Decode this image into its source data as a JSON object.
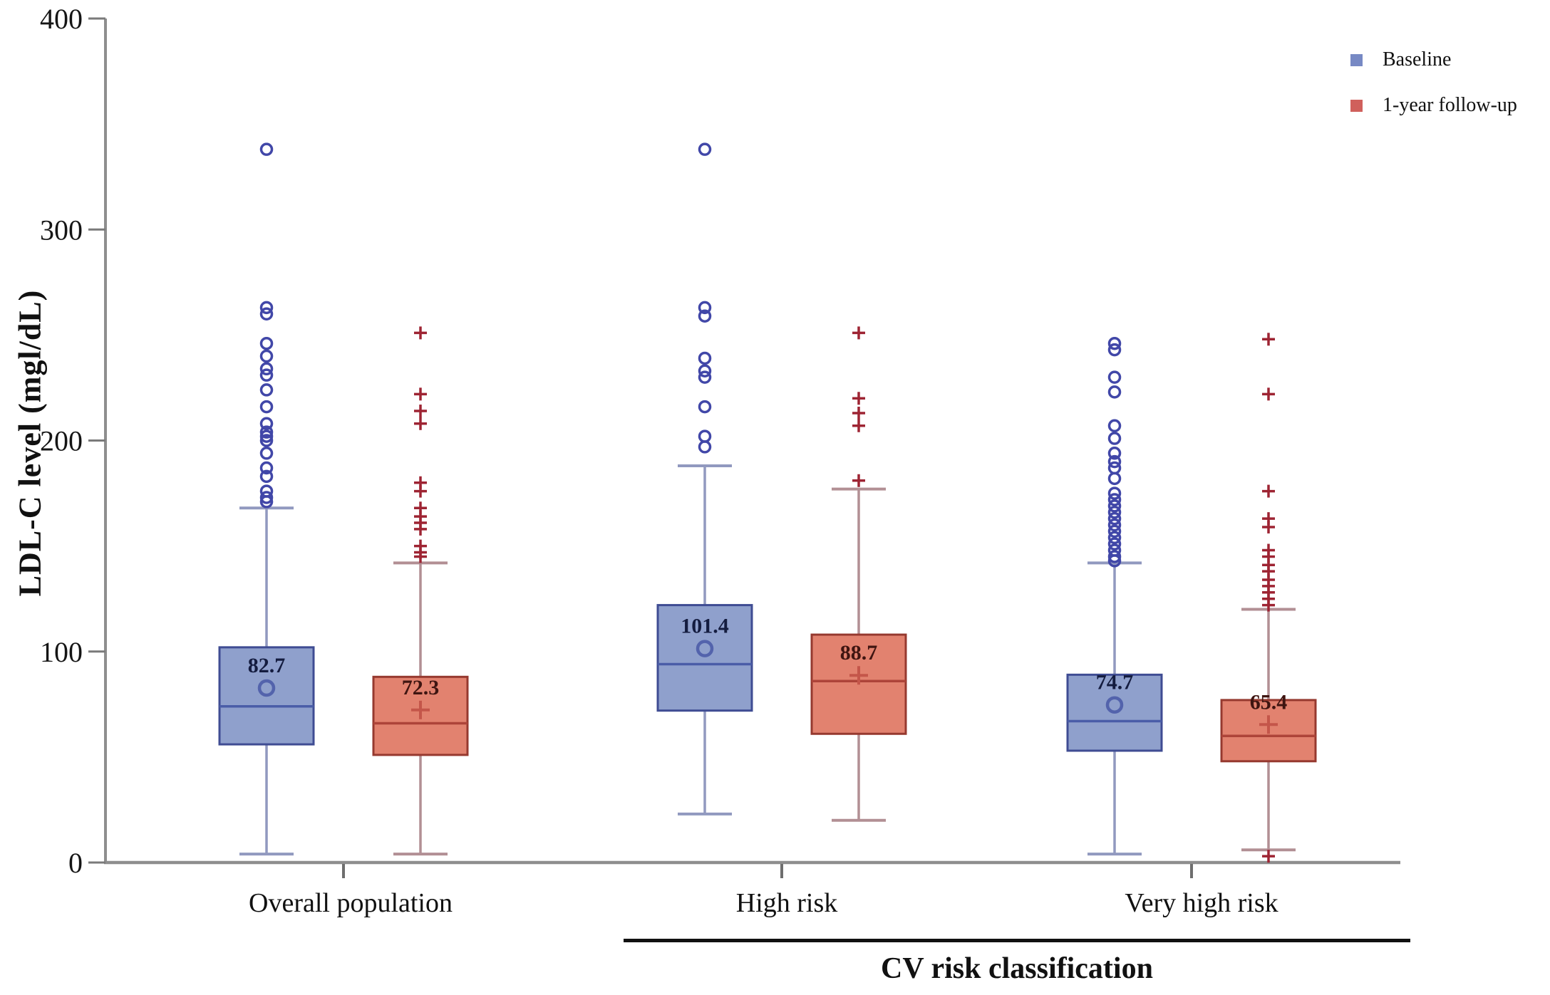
{
  "chart_data": {
    "type": "boxplot",
    "title": "",
    "ylabel": "LDL-C level (mgl/dL)",
    "xlabel": "CV risk classification",
    "ylim": [
      0,
      400
    ],
    "yticks": [
      0,
      100,
      200,
      300,
      400
    ],
    "categories": [
      "Overall population",
      "High risk",
      "Very high risk"
    ],
    "xlabel_underline_spans": [
      "High risk",
      "Very high risk"
    ],
    "legend": {
      "position": "top-right",
      "items": [
        {
          "label": "Baseline",
          "color": "#7789c4"
        },
        {
          "label": "1-year follow-up",
          "color": "#d0605c"
        }
      ]
    },
    "series": [
      {
        "name": "Baseline",
        "marker": "circle",
        "colors": {
          "fill": "#8fa0cc",
          "border": "#3f4c93",
          "median": "#4a5da8",
          "whisker": "#9199bf",
          "marker": "#5363ac",
          "outlier": "#4147a8",
          "mean_label": "#141c3f"
        },
        "boxes": [
          {
            "category": "Overall population",
            "mean": 82.7,
            "mean_label": "82.7",
            "median": 74,
            "q1": 56,
            "q3": 102,
            "whisker_low": 4,
            "whisker_high": 168,
            "outliers": [
              338,
              263,
              260,
              246,
              240,
              234,
              231,
              224,
              216,
              208,
              204,
              202,
              200,
              194,
              187,
              183,
              176,
              173,
              171
            ]
          },
          {
            "category": "High risk",
            "mean": 101.4,
            "mean_label": "101.4",
            "median": 94,
            "q1": 72,
            "q3": 122,
            "whisker_low": 23,
            "whisker_high": 188,
            "outliers": [
              338,
              263,
              259,
              239,
              233,
              230,
              216,
              202,
              197
            ]
          },
          {
            "category": "Very high risk",
            "mean": 74.7,
            "mean_label": "74.7",
            "median": 67,
            "q1": 53,
            "q3": 89,
            "whisker_low": 4,
            "whisker_high": 142,
            "outliers": [
              246,
              243,
              230,
              223,
              207,
              201,
              194,
              190,
              187,
              182,
              175,
              172,
              169,
              166,
              163,
              160,
              157,
              154,
              151,
              148,
              145,
              143
            ]
          }
        ]
      },
      {
        "name": "1-year follow-up",
        "marker": "plus",
        "colors": {
          "fill": "#e2826f",
          "border": "#96392f",
          "median": "#ad4439",
          "whisker": "#b28f94",
          "marker": "#c4564a",
          "outlier": "#9e2433",
          "mean_label": "#3f1511"
        },
        "boxes": [
          {
            "category": "Overall population",
            "mean": 72.3,
            "mean_label": "72.3",
            "median": 66,
            "q1": 51,
            "q3": 88,
            "whisker_low": 4,
            "whisker_high": 142,
            "outliers": [
              251,
              222,
              214,
              208,
              180,
              176,
              168,
              164,
              161,
              158,
              150,
              147,
              145
            ]
          },
          {
            "category": "High risk",
            "mean": 88.7,
            "mean_label": "88.7",
            "median": 86,
            "q1": 61,
            "q3": 108,
            "whisker_low": 20,
            "whisker_high": 177,
            "outliers": [
              251,
              220,
              213,
              207,
              181
            ]
          },
          {
            "category": "Very high risk",
            "mean": 65.4,
            "mean_label": "65.4",
            "median": 60,
            "q1": 48,
            "q3": 77,
            "whisker_low": 6,
            "whisker_high": 120,
            "outliers": [
              248,
              222,
              176,
              163,
              159,
              148,
              145,
              141,
              138,
              134,
              131,
              128,
              125,
              122,
              3
            ]
          }
        ]
      }
    ]
  }
}
